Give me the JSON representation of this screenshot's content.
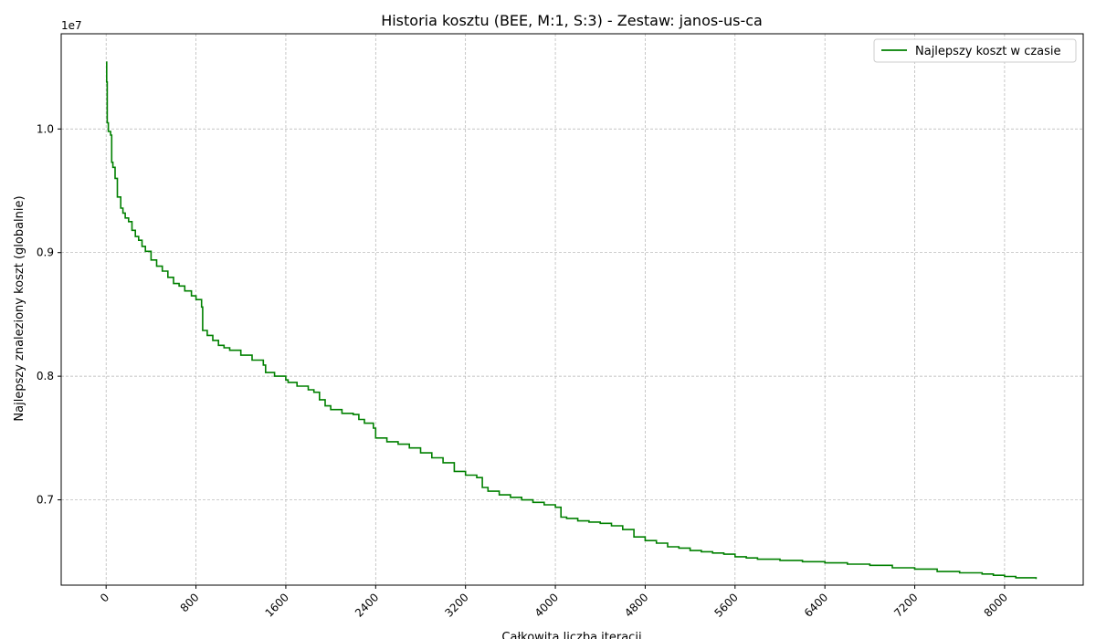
{
  "chart_data": {
    "type": "line",
    "title": "Historia kosztu (BEE, M:1, S:3) - Zestaw: janos-us-ca",
    "xlabel": "Całkowita liczba iteracji",
    "ylabel": "Najlepszy znaleziony koszt (globalnie)",
    "y_offset_label": "1e7",
    "xlim": [
      -400,
      8700
    ],
    "ylim": [
      6.31,
      10.77
    ],
    "x_ticks": [
      0,
      800,
      1600,
      2400,
      3200,
      4000,
      4800,
      5600,
      6400,
      7200,
      8000
    ],
    "x_tick_labels": [
      "0",
      "800",
      "1600",
      "2400",
      "3200",
      "4000",
      "4800",
      "5600",
      "6400",
      "7200",
      "8000"
    ],
    "y_ticks": [
      7.0,
      8.0,
      9.0,
      10.0
    ],
    "y_tick_labels": [
      "0.7",
      "0.8",
      "0.9",
      "1.0"
    ],
    "grid": true,
    "legend_position": "top-right",
    "color": "#008000",
    "series": [
      {
        "name": "Najlepszy koszt w czasie",
        "x": [
          0,
          5,
          10,
          20,
          40,
          50,
          60,
          80,
          100,
          130,
          150,
          170,
          200,
          230,
          260,
          290,
          320,
          350,
          400,
          450,
          500,
          550,
          600,
          650,
          700,
          760,
          800,
          850,
          860,
          900,
          950,
          1000,
          1050,
          1100,
          1200,
          1300,
          1400,
          1420,
          1500,
          1600,
          1620,
          1700,
          1800,
          1850,
          1900,
          1950,
          2000,
          2100,
          2200,
          2250,
          2300,
          2380,
          2400,
          2500,
          2600,
          2700,
          2800,
          2900,
          3000,
          3100,
          3200,
          3300,
          3350,
          3400,
          3500,
          3600,
          3700,
          3800,
          3900,
          4000,
          4050,
          4100,
          4200,
          4300,
          4400,
          4500,
          4600,
          4700,
          4800,
          4900,
          5000,
          5100,
          5200,
          5300,
          5400,
          5500,
          5600,
          5700,
          5800,
          5900,
          6000,
          6200,
          6400,
          6600,
          6800,
          7000,
          7200,
          7400,
          7600,
          7800,
          7900,
          8000,
          8100,
          8200,
          8280
        ],
        "y": [
          10.54,
          10.38,
          10.05,
          9.98,
          9.95,
          9.73,
          9.69,
          9.6,
          9.45,
          9.36,
          9.32,
          9.28,
          9.25,
          9.18,
          9.13,
          9.1,
          9.05,
          9.01,
          8.94,
          8.89,
          8.85,
          8.8,
          8.75,
          8.73,
          8.69,
          8.65,
          8.62,
          8.56,
          8.37,
          8.33,
          8.29,
          8.25,
          8.23,
          8.21,
          8.17,
          8.13,
          8.09,
          8.03,
          8.0,
          7.97,
          7.95,
          7.92,
          7.89,
          7.87,
          7.81,
          7.76,
          7.73,
          7.7,
          7.69,
          7.65,
          7.62,
          7.58,
          7.5,
          7.47,
          7.45,
          7.42,
          7.38,
          7.34,
          7.3,
          7.23,
          7.2,
          7.18,
          7.1,
          7.07,
          7.04,
          7.02,
          7.0,
          6.98,
          6.96,
          6.94,
          6.86,
          6.85,
          6.83,
          6.82,
          6.81,
          6.79,
          6.76,
          6.7,
          6.67,
          6.65,
          6.62,
          6.61,
          6.59,
          6.58,
          6.57,
          6.56,
          6.54,
          6.53,
          6.52,
          6.52,
          6.51,
          6.5,
          6.49,
          6.48,
          6.47,
          6.45,
          6.44,
          6.42,
          6.41,
          6.4,
          6.39,
          6.38,
          6.37,
          6.37,
          6.36
        ]
      }
    ]
  }
}
